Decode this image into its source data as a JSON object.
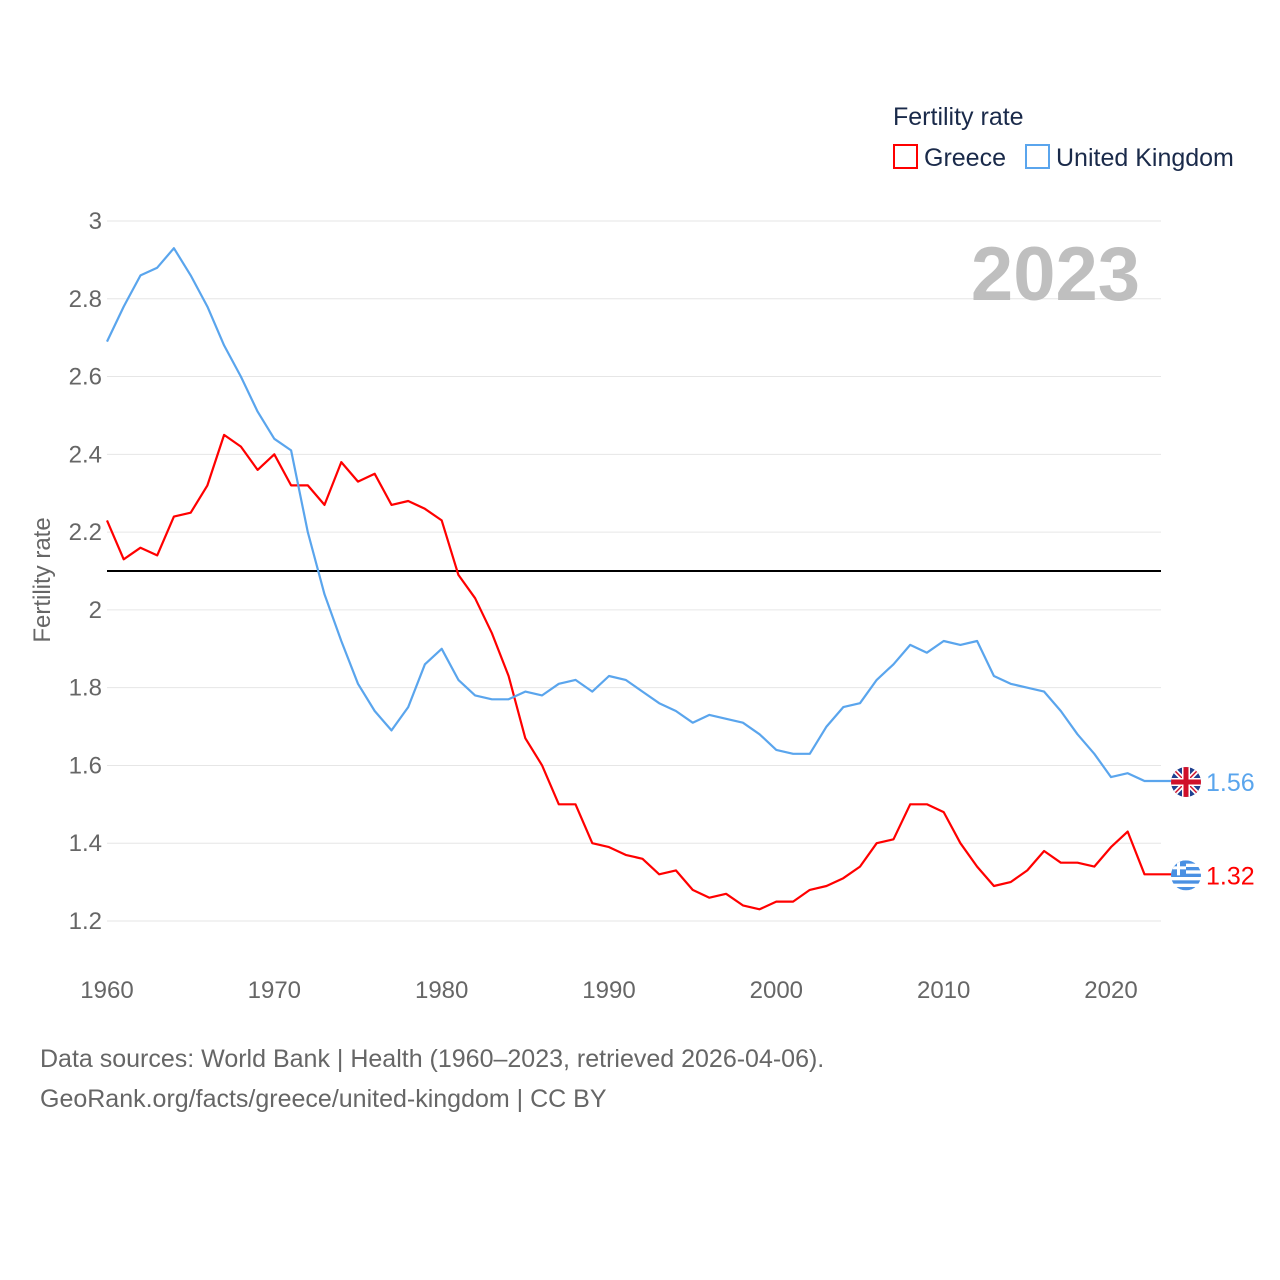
{
  "chart_data": {
    "type": "line",
    "title": "Fertility rate",
    "year_label": "2023",
    "xlabel": "",
    "ylabel": "Fertility rate",
    "xlim": [
      1960,
      2023
    ],
    "ylim": [
      1.1,
      3.0
    ],
    "x_ticks": [
      1960,
      1970,
      1980,
      1990,
      2000,
      2010,
      2020
    ],
    "y_ticks": [
      "1.2",
      "1.4",
      "1.6",
      "1.8",
      "2",
      "2.2",
      "2.4",
      "2.6",
      "2.8",
      "3"
    ],
    "grid": true,
    "legend_position": "top-right",
    "reference_line": 2.1,
    "x": [
      1960,
      1961,
      1962,
      1963,
      1964,
      1965,
      1966,
      1967,
      1968,
      1969,
      1970,
      1971,
      1972,
      1973,
      1974,
      1975,
      1976,
      1977,
      1978,
      1979,
      1980,
      1981,
      1982,
      1983,
      1984,
      1985,
      1986,
      1987,
      1988,
      1989,
      1990,
      1991,
      1992,
      1993,
      1994,
      1995,
      1996,
      1997,
      1998,
      1999,
      2000,
      2001,
      2002,
      2003,
      2004,
      2005,
      2006,
      2007,
      2008,
      2009,
      2010,
      2011,
      2012,
      2013,
      2014,
      2015,
      2016,
      2017,
      2018,
      2019,
      2020,
      2021,
      2022,
      2023
    ],
    "series": [
      {
        "name": "Greece",
        "color": "#ff0000",
        "end_label": "1.32",
        "flag": "greece-flag",
        "values": [
          2.23,
          2.13,
          2.16,
          2.14,
          2.24,
          2.25,
          2.32,
          2.45,
          2.42,
          2.36,
          2.4,
          2.32,
          2.32,
          2.27,
          2.38,
          2.33,
          2.35,
          2.27,
          2.28,
          2.26,
          2.23,
          2.09,
          2.03,
          1.94,
          1.83,
          1.67,
          1.6,
          1.5,
          1.5,
          1.4,
          1.39,
          1.37,
          1.36,
          1.32,
          1.33,
          1.28,
          1.26,
          1.27,
          1.24,
          1.23,
          1.25,
          1.25,
          1.28,
          1.29,
          1.31,
          1.34,
          1.4,
          1.41,
          1.5,
          1.5,
          1.48,
          1.4,
          1.34,
          1.29,
          1.3,
          1.33,
          1.38,
          1.35,
          1.35,
          1.34,
          1.39,
          1.43,
          1.32,
          1.32
        ]
      },
      {
        "name": "United Kingdom",
        "color": "#5aa5ed",
        "end_label": "1.56",
        "flag": "uk-flag",
        "values": [
          2.69,
          2.78,
          2.86,
          2.88,
          2.93,
          2.86,
          2.78,
          2.68,
          2.6,
          2.51,
          2.44,
          2.41,
          2.2,
          2.04,
          1.92,
          1.81,
          1.74,
          1.69,
          1.75,
          1.86,
          1.9,
          1.82,
          1.78,
          1.77,
          1.77,
          1.79,
          1.78,
          1.81,
          1.82,
          1.79,
          1.83,
          1.82,
          1.79,
          1.76,
          1.74,
          1.71,
          1.73,
          1.72,
          1.71,
          1.68,
          1.64,
          1.63,
          1.63,
          1.7,
          1.75,
          1.76,
          1.82,
          1.86,
          1.91,
          1.89,
          1.92,
          1.91,
          1.92,
          1.83,
          1.81,
          1.8,
          1.79,
          1.74,
          1.68,
          1.63,
          1.57,
          1.58,
          1.56,
          1.56
        ]
      }
    ]
  },
  "footer": {
    "line1": "Data sources: World Bank | Health (1960–2023, retrieved 2026-04-06).",
    "line2": "GeoRank.org/facts/greece/united-kingdom | CC BY"
  }
}
